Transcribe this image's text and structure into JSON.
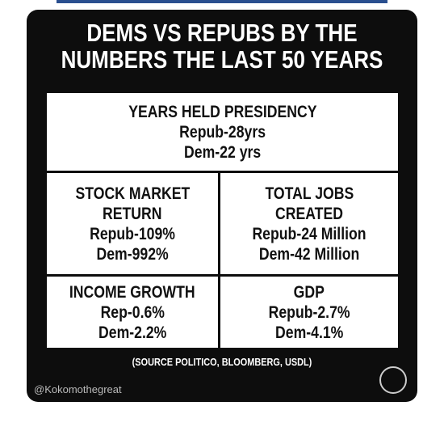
{
  "title": [
    "DEMS VS REPUBS BY THE",
    "NUMBERS THE LAST 50 YEARS"
  ],
  "sections": [
    {
      "heading": [
        "YEARS HELD PRESIDENCY"
      ],
      "lines": [
        "Repub-28yrs",
        "Dem-22 yrs"
      ]
    },
    {
      "heading": [
        "STOCK MARKET",
        "RETURN"
      ],
      "lines": [
        "Repub-109%",
        "Dem-992%"
      ]
    },
    {
      "heading": [
        "TOTAL JOBS",
        "CREATED"
      ],
      "lines": [
        "Repub-24 Million",
        "Dem-42 Million"
      ]
    },
    {
      "heading": [
        "INCOME GROWTH"
      ],
      "lines": [
        "Rep-0.6%",
        "Dem-2.2%"
      ]
    },
    {
      "heading": [
        "GDP"
      ],
      "lines": [
        "Repub-2.7%",
        "Dem-4.1%"
      ]
    }
  ],
  "source": "(SOURCE POLITICO, BLOOMBERG, USDL)",
  "handle": "@Kokomothegreat"
}
